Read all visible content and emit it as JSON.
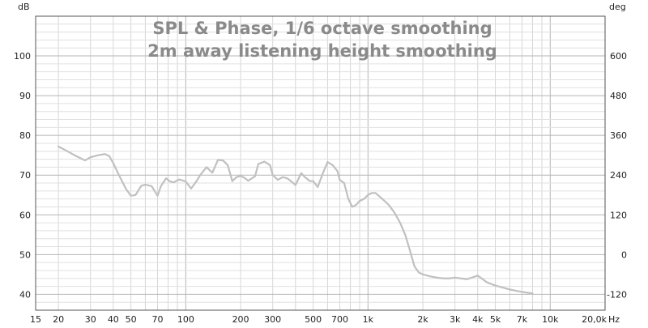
{
  "chart_data": {
    "type": "line",
    "title": "SPL & Phase, 1/6 octave smoothing",
    "subtitle": "2m away listening height  smoothing",
    "ylabel": "dB",
    "y2label": "deg",
    "xlabel": "Hz",
    "x_scale": "log",
    "xlim": [
      15,
      20000
    ],
    "ylim": [
      36,
      110
    ],
    "y2lim": [
      -168,
      720
    ],
    "x_tick_values": [
      15,
      20,
      30,
      40,
      50,
      70,
      100,
      200,
      300,
      500,
      700,
      1000,
      2000,
      3000,
      4000,
      5000,
      7000,
      10000,
      20000
    ],
    "x_tick_labels": [
      "15",
      "20",
      "30",
      "40",
      "50",
      "70",
      "100",
      "200",
      "300",
      "500",
      "700",
      "1k",
      "2k",
      "3k",
      "4k",
      "5k",
      "7k",
      "10k",
      "20,0k"
    ],
    "y_ticks": [
      40,
      50,
      60,
      70,
      80,
      90,
      100
    ],
    "y2_ticks": [
      -120,
      0,
      120,
      240,
      360,
      480,
      600
    ],
    "grid": true,
    "series_color": "#c0c0c0",
    "series": [
      {
        "x": [
          20,
          22,
          25,
          28,
          30,
          33,
          36,
          38,
          40,
          43,
          47,
          50,
          53,
          57,
          60,
          65,
          70,
          73,
          78,
          82,
          86,
          92,
          100,
          107,
          115,
          120,
          130,
          140,
          150,
          160,
          170,
          180,
          190,
          200,
          210,
          220,
          240,
          250,
          270,
          290,
          300,
          320,
          340,
          360,
          380,
          400,
          430,
          450,
          480,
          500,
          530,
          560,
          600,
          640,
          680,
          700,
          740,
          780,
          820,
          860,
          900,
          950,
          1000,
          1050,
          1100,
          1200,
          1300,
          1400,
          1500,
          1600,
          1700,
          1800,
          1900,
          2000,
          2200,
          2400,
          2600,
          2800,
          3000,
          3500,
          4000,
          4200,
          4500,
          5000,
          6000,
          7000,
          8000
        ],
        "y": [
          77.2,
          76.2,
          74.8,
          73.7,
          74.5,
          75,
          75.3,
          74.8,
          73,
          70,
          66.5,
          64.8,
          65,
          67.3,
          67.6,
          67.2,
          64.8,
          67.2,
          69.2,
          68.4,
          68.2,
          68.9,
          68.4,
          66.6,
          68.6,
          70,
          72,
          70.6,
          73.8,
          73.7,
          72.5,
          68.5,
          69.5,
          69.8,
          69.3,
          68.6,
          69.7,
          72.8,
          73.4,
          72.5,
          70,
          68.8,
          69.5,
          69.2,
          68.4,
          67.5,
          70.5,
          69.5,
          68.5,
          68.5,
          67,
          70,
          73.3,
          72.5,
          71,
          68.8,
          68,
          64,
          62,
          62.5,
          63.5,
          64,
          65,
          65.5,
          65.5,
          64,
          62.5,
          60.5,
          58,
          55,
          51,
          47,
          45.5,
          45,
          44.5,
          44.2,
          44,
          44,
          44.2,
          43.8,
          44.7,
          44,
          43,
          42.2,
          41.2,
          40.6,
          40.2
        ]
      }
    ]
  }
}
